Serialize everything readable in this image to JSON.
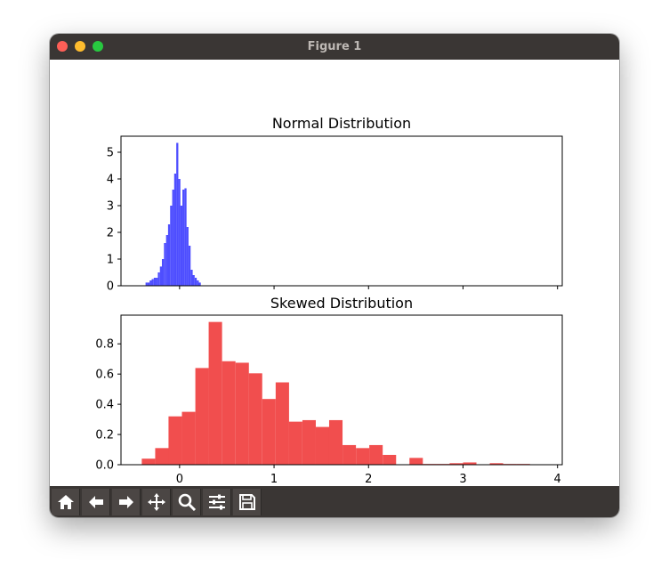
{
  "window": {
    "title": "Figure 1"
  },
  "toolbar": {
    "buttons": [
      {
        "name": "home-icon"
      },
      {
        "name": "back-arrow-icon"
      },
      {
        "name": "forward-arrow-icon"
      },
      {
        "name": "pan-icon"
      },
      {
        "name": "zoom-icon"
      },
      {
        "name": "configure-subplots-icon"
      },
      {
        "name": "save-icon"
      }
    ]
  },
  "colors": {
    "normal": "#4444ff",
    "skewed": "#f04444"
  },
  "chart_data": [
    {
      "type": "bar",
      "title": "Normal Distribution",
      "xlabel": "",
      "ylabel": "",
      "xlim": [
        -0.62,
        4.05
      ],
      "ylim": [
        0,
        5.6
      ],
      "yticks": [
        0,
        1,
        2,
        3,
        4,
        5
      ],
      "xticks_shared_hidden_labels": true,
      "bin_width": 0.0217,
      "bin_starts": [
        -0.36,
        -0.338,
        -0.317,
        -0.295,
        -0.273,
        -0.252,
        -0.23,
        -0.208,
        -0.187,
        -0.165,
        -0.143,
        -0.122,
        -0.1,
        -0.078,
        -0.057,
        -0.035,
        -0.013,
        0.008,
        0.03,
        0.052,
        0.073,
        0.095,
        0.117,
        0.138,
        0.16,
        0.182,
        0.203
      ],
      "values": [
        0.12,
        0.12,
        0.2,
        0.25,
        0.3,
        0.3,
        0.5,
        0.72,
        1.0,
        1.6,
        1.9,
        2.3,
        3.0,
        3.6,
        4.2,
        5.35,
        4.0,
        3.0,
        3.6,
        3.65,
        2.2,
        1.5,
        0.6,
        0.4,
        0.3,
        0.2,
        0.12
      ]
    },
    {
      "type": "bar",
      "title": "Skewed Distribution",
      "xlabel": "",
      "ylabel": "",
      "xlim": [
        -0.62,
        4.05
      ],
      "ylim": [
        0,
        0.99
      ],
      "yticks": [
        0.0,
        0.2,
        0.4,
        0.6,
        0.8
      ],
      "xticks": [
        0,
        1,
        2,
        3,
        4
      ],
      "bin_width": 0.1417,
      "bin_starts": [
        -0.4,
        -0.258,
        -0.117,
        0.025,
        0.167,
        0.308,
        0.45,
        0.592,
        0.733,
        0.875,
        1.017,
        1.158,
        1.3,
        1.442,
        1.583,
        1.725,
        1.867,
        2.008,
        2.15,
        2.292,
        2.433,
        2.575,
        2.717,
        2.858,
        3.0,
        3.142,
        3.283,
        3.425,
        3.567,
        3.708
      ],
      "values": [
        0.04,
        0.11,
        0.32,
        0.35,
        0.64,
        0.945,
        0.685,
        0.675,
        0.605,
        0.435,
        0.545,
        0.285,
        0.295,
        0.25,
        0.295,
        0.13,
        0.11,
        0.13,
        0.065,
        0.0,
        0.045,
        0.005,
        0.005,
        0.01,
        0.015,
        0.0,
        0.01,
        0.005,
        0.005,
        0.0
      ]
    }
  ]
}
